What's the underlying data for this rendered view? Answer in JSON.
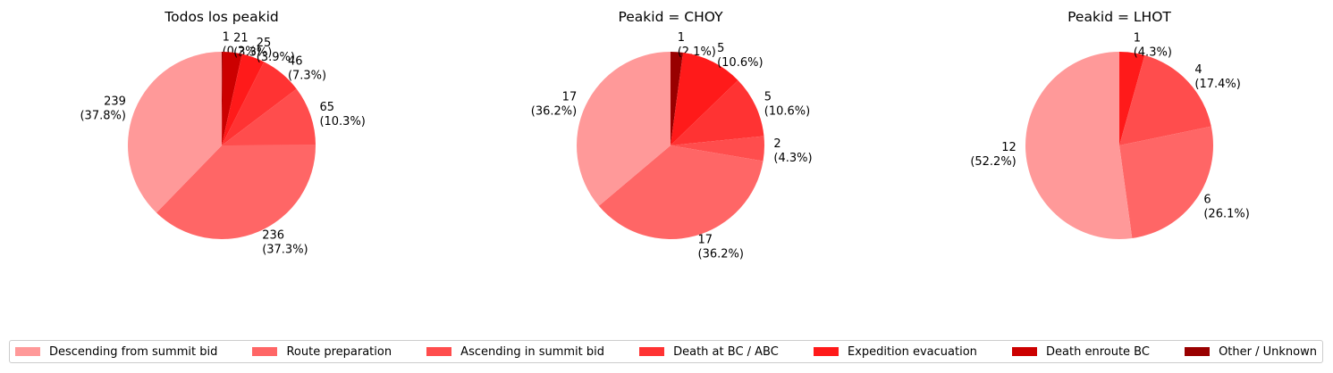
{
  "colors": [
    "#ff9999",
    "#ff6666",
    "#ff4d4d",
    "#ff3333",
    "#ff1a1a",
    "#cc0000",
    "#990000"
  ],
  "legend": {
    "placement": "bottom",
    "entries": [
      "Descending from summit bid",
      "Route preparation",
      "Ascending in summit bid",
      "Death at BC / ABC",
      "Expedition evacuation",
      "Death enroute BC",
      "Other / Unknown"
    ]
  },
  "chart_data": [
    {
      "type": "pie",
      "title": "Todos los peakid",
      "series": [
        {
          "label": "Descending from summit bid",
          "value": 239,
          "pct": "37.8%"
        },
        {
          "label": "Route preparation",
          "value": 236,
          "pct": "37.3%"
        },
        {
          "label": "Ascending in summit bid",
          "value": 65,
          "pct": "10.3%"
        },
        {
          "label": "Death at BC / ABC",
          "value": 46,
          "pct": "7.3%"
        },
        {
          "label": "Expedition evacuation",
          "value": 25,
          "pct": "3.9%"
        },
        {
          "label": "Death enroute BC",
          "value": 21,
          "pct": "3.3%"
        },
        {
          "label": "Other / Unknown",
          "value": 1,
          "pct": "0.2%"
        }
      ]
    },
    {
      "type": "pie",
      "title": "Peakid = CHOY",
      "series": [
        {
          "label": "Descending from summit bid",
          "value": 17,
          "pct": "36.2%"
        },
        {
          "label": "Route preparation",
          "value": 17,
          "pct": "36.2%"
        },
        {
          "label": "Ascending in summit bid",
          "value": 2,
          "pct": "4.3%"
        },
        {
          "label": "Death at BC / ABC",
          "value": 5,
          "pct": "10.6%"
        },
        {
          "label": "Expedition evacuation",
          "value": 5,
          "pct": "10.6%"
        },
        {
          "label": "Death enroute BC",
          "value": 0,
          "pct": ""
        },
        {
          "label": "Other / Unknown",
          "value": 1,
          "pct": "2.1%"
        }
      ]
    },
    {
      "type": "pie",
      "title": "Peakid = LHOT",
      "series": [
        {
          "label": "Descending from summit bid",
          "value": 12,
          "pct": "52.2%"
        },
        {
          "label": "Route preparation",
          "value": 6,
          "pct": "26.1%"
        },
        {
          "label": "Ascending in summit bid",
          "value": 4,
          "pct": "17.4%"
        },
        {
          "label": "Death at BC / ABC",
          "value": 0,
          "pct": ""
        },
        {
          "label": "Expedition evacuation",
          "value": 1,
          "pct": "4.3%"
        },
        {
          "label": "Death enroute BC",
          "value": 0,
          "pct": ""
        },
        {
          "label": "Other / Unknown",
          "value": 0,
          "pct": ""
        }
      ]
    }
  ]
}
